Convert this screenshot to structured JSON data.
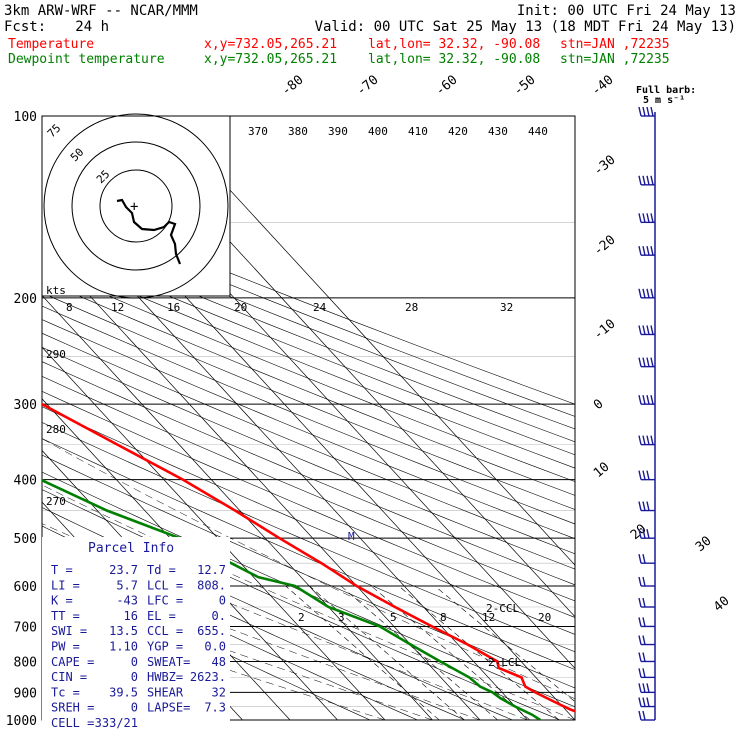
{
  "header": {
    "model": "3km ARW-WRF -- NCAR/MMM",
    "init": "Init: 00 UTC Fri 24 May 13",
    "fcst_label": "Fcst:",
    "fcst_value": "24 h",
    "valid": "Valid: 00 UTC Sat 25 May 13 (18 MDT Fri 24 May 13)",
    "temp_name": "Temperature",
    "dew_name": "Dewpoint temperature",
    "xy": "x,y=732.05,265.21",
    "latlon": "lat,lon= 32.32, -90.08",
    "stn": "stn=JAN ,72235",
    "temp_color": "#ff0000",
    "dew_color": "#008000"
  },
  "wind_legend": {
    "line1": "Full barb:",
    "line2": "5 m s⁻¹"
  },
  "hodograph": {
    "ring_labels": [
      "75",
      "50",
      "25"
    ],
    "kts_label": "kts",
    "path": [
      [
        -19,
        -5
      ],
      [
        -14,
        -6
      ],
      [
        -10,
        1
      ],
      [
        -4,
        7
      ],
      [
        -2,
        16
      ],
      [
        6,
        23
      ],
      [
        18,
        24
      ],
      [
        28,
        21
      ],
      [
        33,
        16
      ],
      [
        39,
        18
      ],
      [
        35,
        29
      ],
      [
        39,
        38
      ],
      [
        40,
        48
      ],
      [
        44,
        58
      ]
    ]
  },
  "parcel_info": {
    "title": "Parcel Info",
    "rows": [
      {
        "a": "T   =",
        "av": "23.7",
        "b": "Td =",
        "bv": "12.7"
      },
      {
        "a": "LI  =",
        "av": "5.7",
        "b": "LCL =",
        "bv": "808."
      },
      {
        "a": "K   =",
        "av": "-43",
        "b": "LFC =",
        "bv": "0"
      },
      {
        "a": "TT  =",
        "av": "16",
        "b": "EL  =",
        "bv": "0."
      },
      {
        "a": "SWI =",
        "av": "13.5",
        "b": "CCL =",
        "bv": "655."
      },
      {
        "a": "PW  =",
        "av": "1.10",
        "b": "YGP =",
        "bv": "0.0"
      },
      {
        "a": "CAPE =",
        "av": "0",
        "b": "SWEAT=",
        "bv": "48"
      },
      {
        "a": "CIN  =",
        "av": "0",
        "b": "HWBZ=",
        "bv": "2623."
      },
      {
        "a": "Tc   =",
        "av": "39.5",
        "b": "SHEAR",
        "bv": "32"
      },
      {
        "a": "SREH =",
        "av": "0",
        "b": "LAPSE=",
        "bv": "7.3"
      },
      {
        "a": "CELL =",
        "av": "333/21",
        "b": "",
        "bv": ""
      }
    ]
  },
  "level_markers": {
    "ccl": "CCL",
    "lcl": "LCL",
    "m": "M"
  },
  "chart_data": {
    "type": "line",
    "title": "",
    "pressure_levels": [
      100,
      200,
      300,
      400,
      500,
      600,
      700,
      800,
      900,
      1000
    ],
    "isotherm_labels": [
      "-80",
      "-70",
      "-60",
      "-50",
      "-40",
      "-30",
      "-20",
      "-10",
      "0",
      "10",
      "20",
      "30",
      "40"
    ],
    "theta_e_labels": [
      "370",
      "380",
      "390",
      "400",
      "410",
      "420",
      "430",
      "440"
    ],
    "theta_labels": [
      "290",
      "280",
      "270"
    ],
    "mixing_ratio_labels_top": [
      "8",
      "12",
      "16",
      "20",
      "24",
      "28",
      "32"
    ],
    "mixing_ratio_labels_bottom": [
      "2",
      "3",
      "5",
      "8",
      "12",
      "20"
    ],
    "series": [
      {
        "name": "Temperature",
        "color": "#ff0000",
        "points": [
          [
            100,
            -71
          ],
          [
            120,
            -64
          ],
          [
            150,
            -59
          ],
          [
            170,
            -55
          ],
          [
            200,
            -50
          ],
          [
            230,
            -44
          ],
          [
            270,
            -36
          ],
          [
            300,
            -31
          ],
          [
            350,
            -23
          ],
          [
            400,
            -16
          ],
          [
            450,
            -11
          ],
          [
            500,
            -7
          ],
          [
            550,
            -3
          ],
          [
            600,
            0
          ],
          [
            650,
            4
          ],
          [
            700,
            8
          ],
          [
            750,
            12
          ],
          [
            800,
            15
          ],
          [
            820,
            14
          ],
          [
            850,
            17
          ],
          [
            880,
            16
          ],
          [
            900,
            17
          ],
          [
            930,
            19
          ],
          [
            960,
            21
          ],
          [
            980,
            23
          ],
          [
            1000,
            23.7
          ]
        ]
      },
      {
        "name": "Dewpoint temperature",
        "color": "#008000",
        "points": [
          [
            100,
            -85
          ],
          [
            120,
            -81
          ],
          [
            150,
            -77
          ],
          [
            170,
            -74
          ],
          [
            200,
            -71
          ],
          [
            230,
            -63
          ],
          [
            260,
            -62
          ],
          [
            280,
            -61
          ],
          [
            300,
            -59
          ],
          [
            330,
            -57
          ],
          [
            360,
            -55
          ],
          [
            400,
            -46
          ],
          [
            450,
            -38
          ],
          [
            500,
            -28
          ],
          [
            550,
            -22
          ],
          [
            580,
            -19
          ],
          [
            600,
            -13
          ],
          [
            650,
            -10
          ],
          [
            700,
            -3
          ],
          [
            750,
            0
          ],
          [
            800,
            3
          ],
          [
            850,
            6
          ],
          [
            880,
            6.5
          ],
          [
            900,
            8
          ],
          [
            920,
            8.5
          ],
          [
            950,
            10
          ],
          [
            980,
            12
          ],
          [
            1000,
            12.7
          ]
        ]
      }
    ],
    "winds": [
      [
        100,
        -40,
        45
      ],
      [
        130,
        -35,
        40
      ],
      [
        150,
        -40,
        35
      ],
      [
        170,
        -30,
        30
      ],
      [
        200,
        -35,
        30
      ],
      [
        230,
        -25,
        25
      ],
      [
        260,
        -30,
        25
      ],
      [
        300,
        -25,
        20
      ],
      [
        350,
        -20,
        20
      ],
      [
        400,
        -15,
        15
      ],
      [
        450,
        -10,
        15
      ],
      [
        500,
        -5,
        15
      ],
      [
        550,
        -10,
        10
      ],
      [
        600,
        -5,
        10
      ],
      [
        650,
        5,
        10
      ],
      [
        700,
        10,
        10
      ],
      [
        750,
        15,
        10
      ],
      [
        800,
        10,
        10
      ],
      [
        850,
        20,
        10
      ],
      [
        900,
        25,
        15
      ],
      [
        950,
        25,
        15
      ],
      [
        1000,
        20,
        10
      ]
    ]
  }
}
